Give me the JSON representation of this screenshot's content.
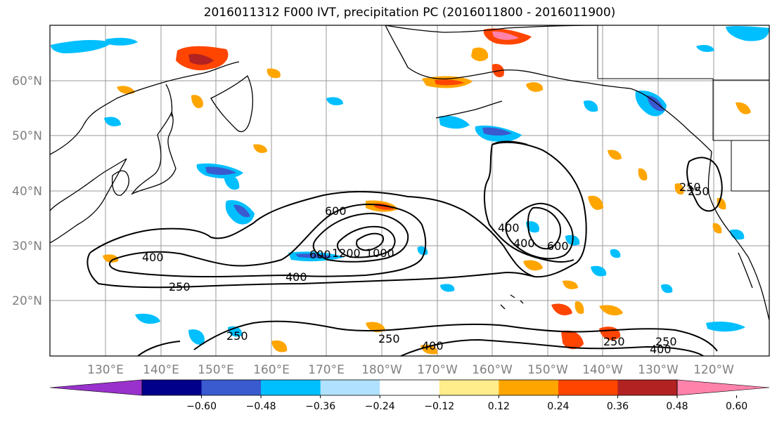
{
  "title": "2016011312 F000 IVT, precipitation PC (2016011800 - 2016011900)",
  "lat_labels": [
    "60°N",
    "50°N",
    "40°N",
    "30°N",
    "20°N"
  ],
  "lon_labels": [
    "130°E",
    "140°E",
    "150°E",
    "160°E",
    "170°E",
    "180°W",
    "170°W",
    "160°W",
    "150°W",
    "140°W",
    "130°W",
    "120°W"
  ],
  "ivt_contour_labels": [
    "600",
    "400",
    "250",
    "400",
    "250",
    "600",
    "1200",
    "1000",
    "400",
    "400",
    "600",
    "250",
    "250",
    "400",
    "250",
    "250",
    "250",
    "400"
  ],
  "colorbar": {
    "ticks": [
      "−0.60",
      "−0.48",
      "−0.36",
      "−0.24",
      "−0.12",
      "0.12",
      "0.24",
      "0.36",
      "0.48",
      "0.60"
    ],
    "colors": [
      "#9932cc",
      "#00008b",
      "#3a5bcf",
      "#00bfff",
      "#b0e2ff",
      "#ffffff",
      "#ffec8b",
      "#ffa500",
      "#ff4500",
      "#b22222",
      "#ff82ab"
    ]
  }
}
